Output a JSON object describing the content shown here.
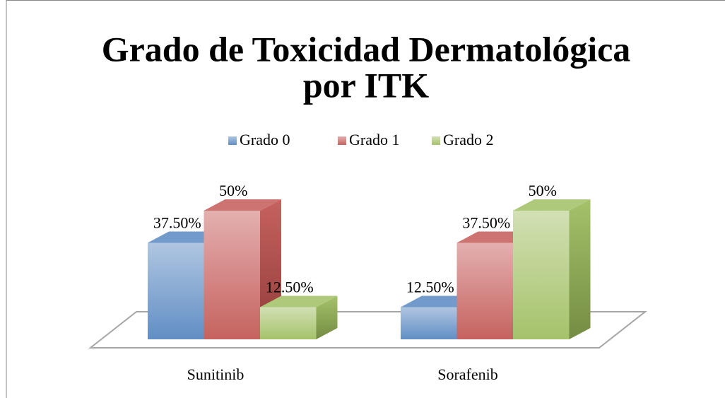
{
  "chart_data": {
    "type": "bar3d",
    "title": [
      "Grado de Toxicidad Dermatológica",
      "por ITK"
    ],
    "categories": [
      "Sunitinib",
      "Sorafenib"
    ],
    "series": [
      {
        "name": "Grado 0",
        "color": "#4f81bd",
        "values": [
          37.5,
          12.5
        ],
        "value_labels": [
          "37.50%",
          "12.50%"
        ]
      },
      {
        "name": "Grado 1",
        "color": "#c0504d",
        "values": [
          50,
          37.5
        ],
        "value_labels": [
          "50%",
          "37.50%"
        ]
      },
      {
        "name": "Grado 2",
        "color": "#9bbb59",
        "values": [
          12.5,
          50
        ],
        "value_labels": [
          "12.50%",
          "50%"
        ]
      }
    ],
    "legend": "top"
  }
}
